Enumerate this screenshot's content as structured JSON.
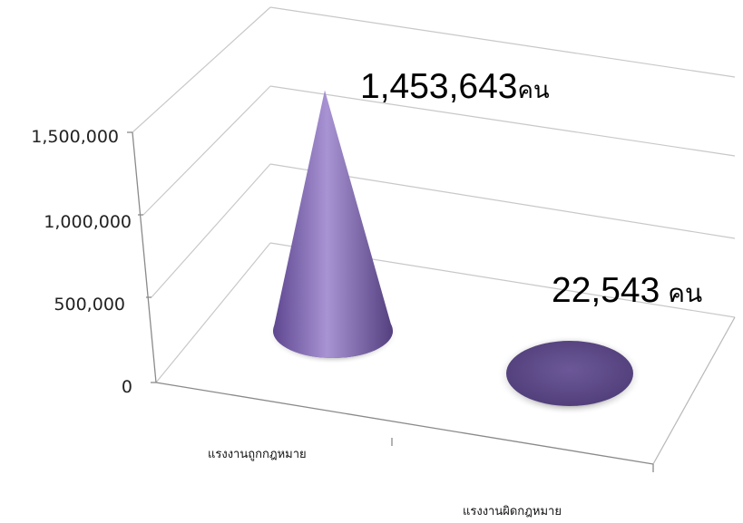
{
  "chart_data": {
    "type": "bar",
    "shape": "cone",
    "categories": [
      "แรงงานถูกกฎหมาย",
      "แรงงานผิดกฎหมาย"
    ],
    "values": [
      1453643,
      22543
    ],
    "data_labels": [
      {
        "number": "1,453,643",
        "unit": "คน"
      },
      {
        "number": "22,543",
        "unit": "คน"
      }
    ],
    "yticks": [
      "0",
      "500,000",
      "1,000,000",
      "1,500,000"
    ],
    "ylim": [
      0,
      1500000
    ],
    "grid": true,
    "legend": "none",
    "colors": {
      "cone": "#8a70b8",
      "cone_dark": "#5a4585",
      "grid": "#c8c8c8",
      "axis": "#8a8a8a"
    }
  }
}
